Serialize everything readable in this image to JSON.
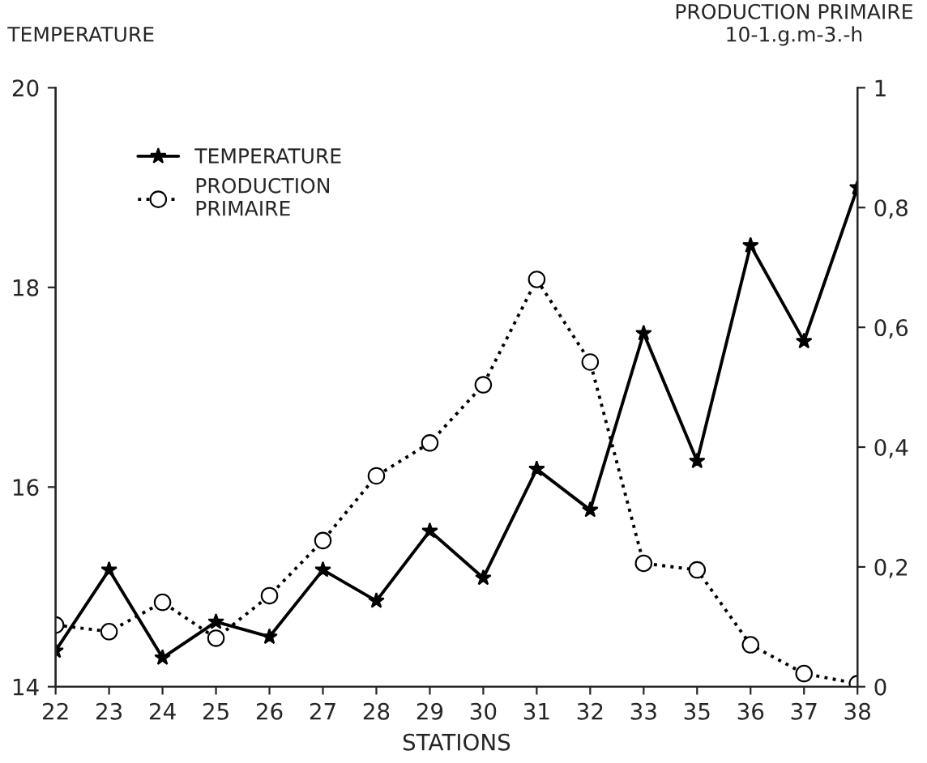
{
  "chart_data": {
    "type": "line",
    "xlabel": "STATIONS",
    "ylabel": "TEMPERATURE",
    "y2label": "PRODUCTION PRIMAIRE\n10-1.g.m-3.-h",
    "categories": [
      "22",
      "23",
      "24",
      "25",
      "26",
      "27",
      "28",
      "29",
      "30",
      "31",
      "32",
      "33",
      "35",
      "36",
      "37",
      "38"
    ],
    "series": [
      {
        "name": "TEMPERATURE",
        "color": "#000000",
        "marker": "star",
        "line_style": "solid",
        "values": [
          14.36,
          15.17,
          14.29,
          14.65,
          14.5,
          15.17,
          14.86,
          15.56,
          15.09,
          16.18,
          15.77,
          17.54,
          16.26,
          18.42,
          17.46,
          19.0
        ]
      },
      {
        "name": "PRODUCTION\nPRIMAIRE",
        "color": "#000000",
        "marker": "circle",
        "line_style": "dotted",
        "axis": "y2",
        "values": [
          0.103,
          0.092,
          0.141,
          0.081,
          0.152,
          0.244,
          0.352,
          0.407,
          0.504,
          0.68,
          0.542,
          0.206,
          0.195,
          0.07,
          0.022,
          0.005
        ]
      }
    ],
    "ylim": [
      14,
      20
    ],
    "yticks": [
      14,
      16,
      18,
      20
    ],
    "y2lim": [
      0,
      1
    ],
    "y2ticks": [
      0,
      {
        "value": 0.2,
        "label": "0,2"
      },
      {
        "value": 0.4,
        "label": "0,4"
      },
      {
        "value": 0.6,
        "label": "0,6"
      },
      {
        "value": 0.8,
        "label": "0,8"
      },
      1
    ],
    "grid": false,
    "legend": "top left"
  }
}
